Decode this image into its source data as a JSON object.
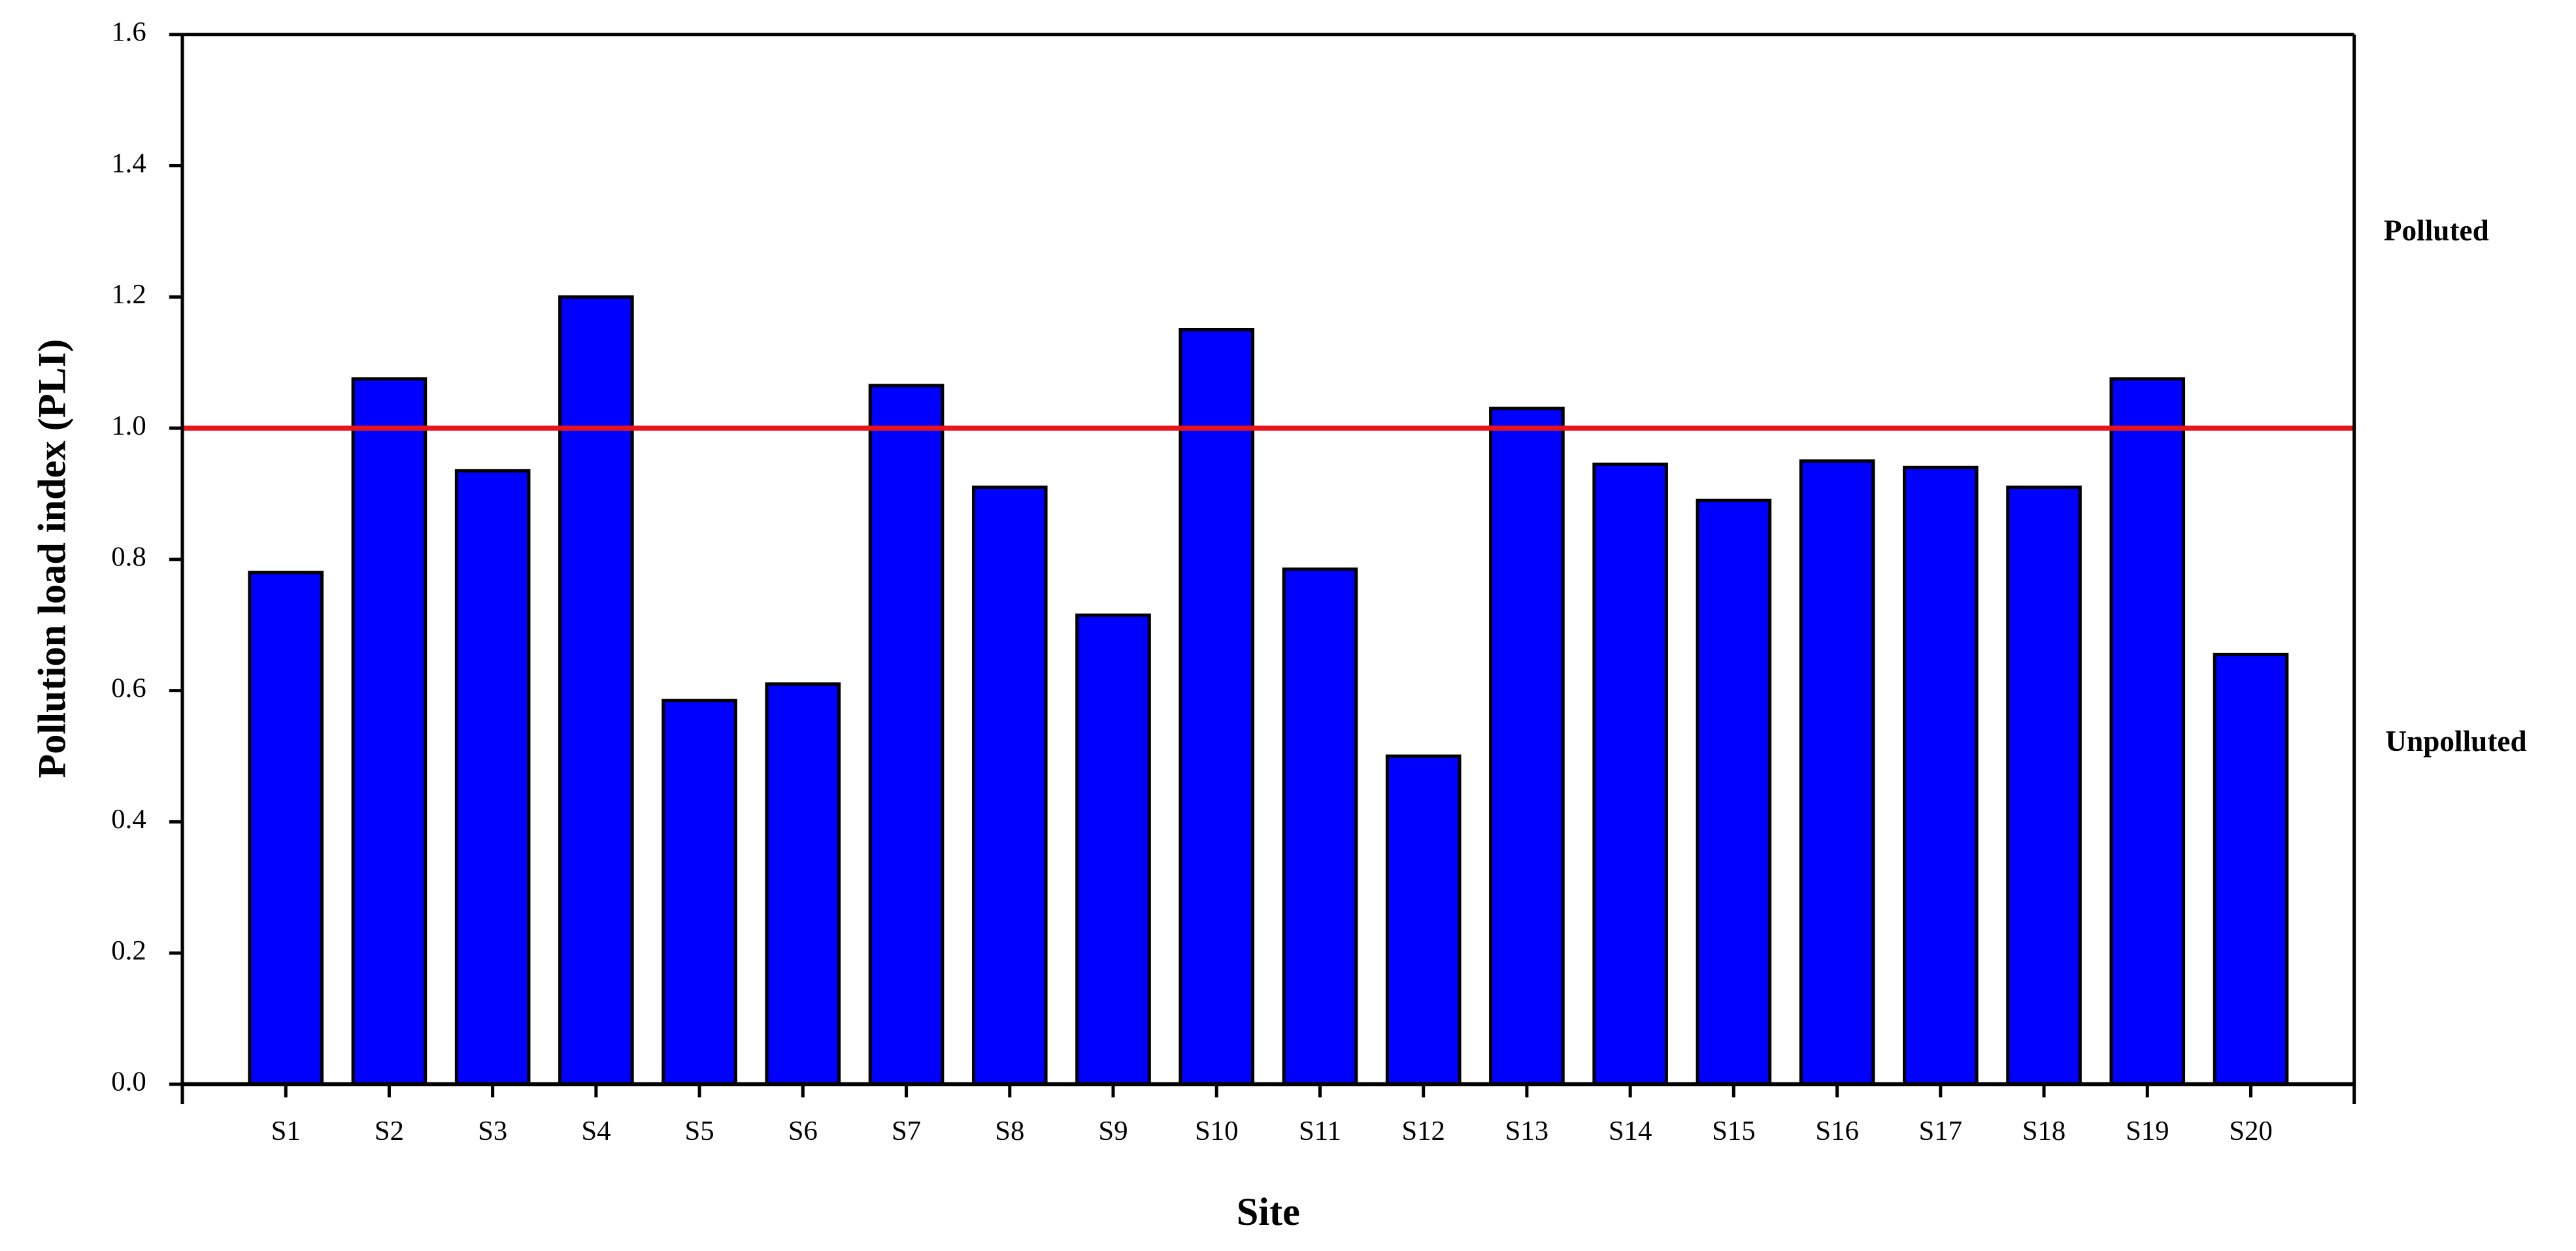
{
  "chart_data": {
    "type": "bar",
    "x_label": "Site",
    "y_label": "Pollution load index (PLI)",
    "categories": [
      "S1",
      "S2",
      "S3",
      "S4",
      "S5",
      "S6",
      "S7",
      "S8",
      "S9",
      "S10",
      "S11",
      "S12",
      "S13",
      "S14",
      "S15",
      "S16",
      "S17",
      "S18",
      "S19",
      "S20"
    ],
    "values": [
      0.78,
      1.075,
      0.935,
      1.2,
      0.585,
      0.61,
      1.065,
      0.91,
      0.715,
      1.15,
      0.785,
      0.5,
      1.03,
      0.945,
      0.89,
      0.95,
      0.94,
      0.91,
      1.075,
      0.655
    ],
    "color": "#0000ff",
    "ylim": [
      0,
      1.6
    ],
    "yticks": [
      {
        "value": 0,
        "label": "0.0"
      },
      0.2,
      0.4,
      0.6,
      0.8,
      {
        "value": 1,
        "label": "1.0"
      },
      1.2,
      1.4,
      1.6
    ],
    "reference_line": {
      "value": 1,
      "color": "#e8141c"
    },
    "annotations": [
      "Polluted",
      "Unpolluted"
    ]
  }
}
